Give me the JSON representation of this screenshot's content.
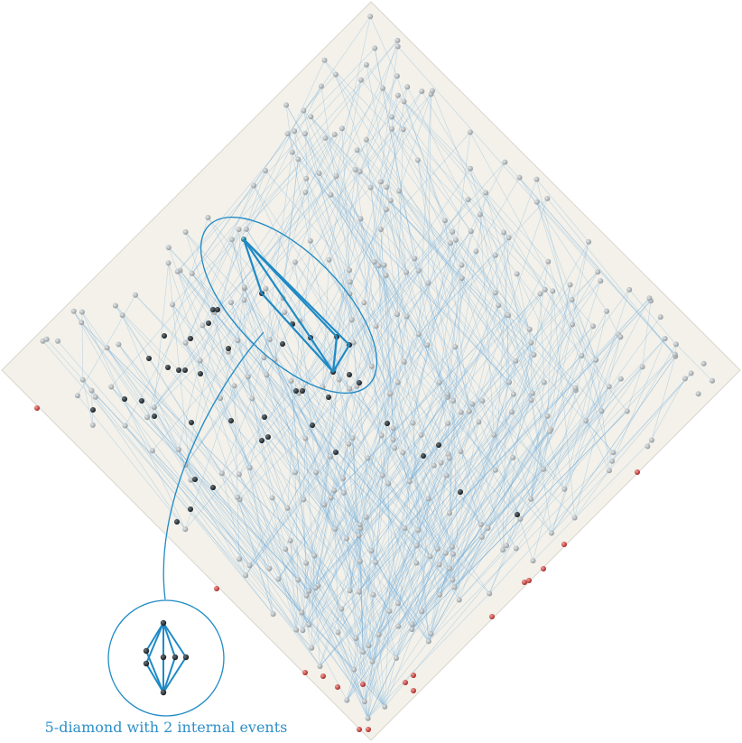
{
  "figure": {
    "caption": "5-diamond with 2 internal events",
    "colors": {
      "background": "#f3f1ea",
      "border": "#d8d6cd",
      "link": "#6aa9d9",
      "highlight": "#1f8ac5",
      "node_gray": "#a7adb0",
      "node_black": "#1b2227",
      "node_red": "#c9302c",
      "node_teal": "#1a6f75",
      "caption": "#2e8fc7"
    },
    "icons": {
      "node": "sphere-node-icon",
      "zoom": "magnifier-circle-icon"
    }
  }
}
